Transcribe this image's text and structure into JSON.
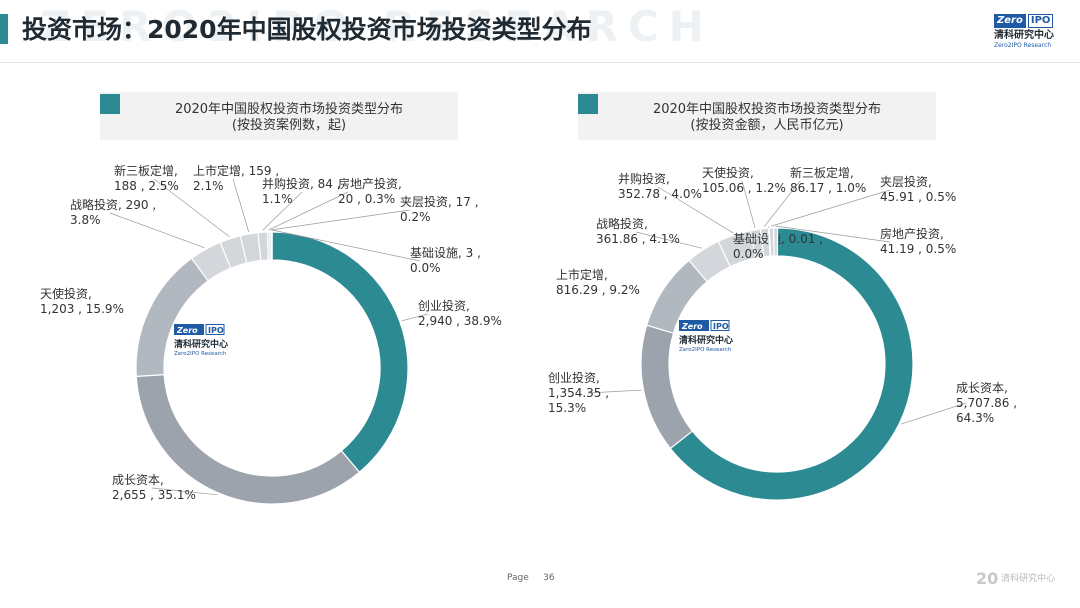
{
  "header": {
    "title": "投资市场：2020年中国股权投资市场投资类型分布",
    "watermark": "ZERO2IPO RESEARCH"
  },
  "logo": {
    "badge_left": "Zero",
    "badge_right": "IPO",
    "cn": "清科研究中心",
    "en": "Zero2IPO Research"
  },
  "footer": {
    "page_label": "Page",
    "page_number": "36",
    "logo_mark": "20",
    "logo_text": "清科研究中心"
  },
  "colors": {
    "teal": "#2b8a92",
    "grey_dark": "#9da3ad",
    "grey_mid": "#b2b8c0",
    "grey_light": "#d3d7dc",
    "header_bg": "#f2f2f2"
  },
  "chart_data": [
    {
      "type": "pie",
      "title": "2020年中国股权投资市场投资类型分布",
      "subtitle": "(按投资案例数，起)",
      "slices": [
        {
          "name": "创业投资",
          "value": 2940,
          "percent": 38.9,
          "label": "创业投资,\n2,940 , 38.9%"
        },
        {
          "name": "成长资本",
          "value": 2655,
          "percent": 35.1,
          "label": "成长资本,\n2,655 , 35.1%"
        },
        {
          "name": "天使投资",
          "value": 1203,
          "percent": 15.9,
          "label": "天使投资,\n1,203 , 15.9%"
        },
        {
          "name": "战略投资",
          "value": 290,
          "percent": 3.8,
          "label": "战略投资, 290 ,\n3.8%"
        },
        {
          "name": "新三板定增",
          "value": 188,
          "percent": 2.5,
          "label": "新三板定增,\n188 , 2.5%"
        },
        {
          "name": "上市定增",
          "value": 159,
          "percent": 2.1,
          "label": "上市定增, 159 ,\n2.1%"
        },
        {
          "name": "并购投资",
          "value": 84,
          "percent": 1.1,
          "label": "并购投资, 84 ,\n1.1%"
        },
        {
          "name": "房地产投资",
          "value": 20,
          "percent": 0.3,
          "label": "房地产投资,\n20 , 0.3%"
        },
        {
          "name": "夹层投资",
          "value": 17,
          "percent": 0.2,
          "label": "夹层投资, 17 ,\n0.2%"
        },
        {
          "name": "基础设施",
          "value": 3,
          "percent": 0.0,
          "label": "基础设施, 3 ,\n0.0%"
        }
      ]
    },
    {
      "type": "pie",
      "title": "2020年中国股权投资市场投资类型分布",
      "subtitle": "(按投资金额，人民币亿元)",
      "slices": [
        {
          "name": "成长资本",
          "value": 5707.86,
          "percent": 64.3,
          "label": "成长资本,\n5,707.86 ,\n64.3%"
        },
        {
          "name": "创业投资",
          "value": 1354.35,
          "percent": 15.3,
          "label": "创业投资,\n1,354.35 ,\n15.3%"
        },
        {
          "name": "上市定增",
          "value": 816.29,
          "percent": 9.2,
          "label": "上市定增,\n816.29 , 9.2%"
        },
        {
          "name": "战略投资",
          "value": 361.86,
          "percent": 4.1,
          "label": "战略投资,\n361.86 , 4.1%"
        },
        {
          "name": "并购投资",
          "value": 352.78,
          "percent": 4.0,
          "label": "并购投资,\n352.78 , 4.0%"
        },
        {
          "name": "天使投资",
          "value": 105.06,
          "percent": 1.2,
          "label": "天使投资,\n105.06 , 1.2%"
        },
        {
          "name": "新三板定增",
          "value": 86.17,
          "percent": 1.0,
          "label": "新三板定增,\n86.17 , 1.0%"
        },
        {
          "name": "基础设施",
          "value": 0.01,
          "percent": 0.0,
          "label": "基础设施, 0.01 ,\n0.0%"
        },
        {
          "name": "夹层投资",
          "value": 45.91,
          "percent": 0.5,
          "label": "夹层投资,\n45.91 , 0.5%"
        },
        {
          "name": "房地产投资",
          "value": 41.19,
          "percent": 0.5,
          "label": "房地产投资,\n41.19 , 0.5%"
        }
      ]
    }
  ]
}
